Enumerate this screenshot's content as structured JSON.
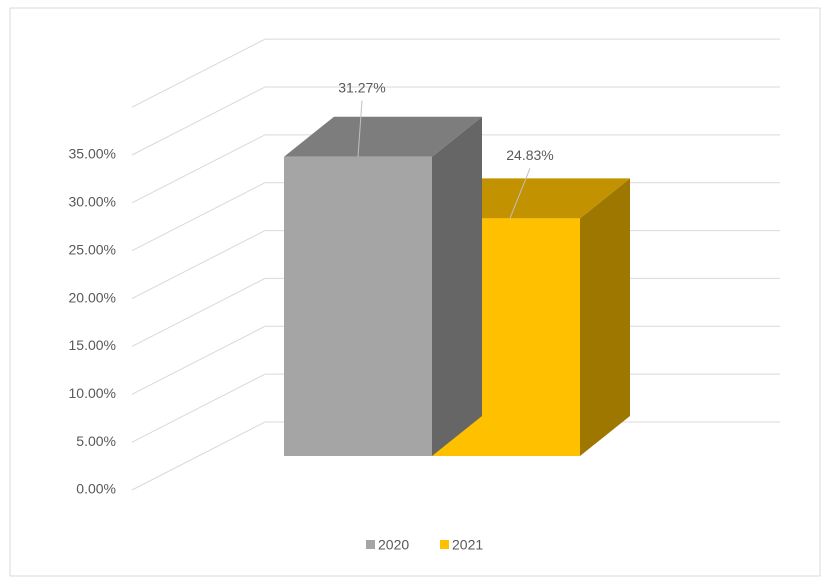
{
  "chart_data": {
    "type": "bar3d",
    "categories": [
      null
    ],
    "series": [
      {
        "name": "2020",
        "color": "#a5a5a5",
        "values": [
          31.27
        ],
        "value_labels": [
          "31.27%"
        ]
      },
      {
        "name": "2021",
        "color": "#ffc000",
        "values": [
          24.83
        ],
        "value_labels": [
          "24.83%"
        ]
      }
    ],
    "ylim": [
      0,
      40
    ],
    "yticks": [
      {
        "value": 0,
        "label": "0.00%"
      },
      {
        "value": 5,
        "label": "5.00%"
      },
      {
        "value": 10,
        "label": "10.00%"
      },
      {
        "value": 15,
        "label": "15.00%"
      },
      {
        "value": 20,
        "label": "20.00%"
      },
      {
        "value": 25,
        "label": "25.00%"
      },
      {
        "value": 30,
        "label": "30.00%"
      },
      {
        "value": 35,
        "label": "35.00%"
      }
    ],
    "grid": true,
    "legend": "bottom"
  }
}
